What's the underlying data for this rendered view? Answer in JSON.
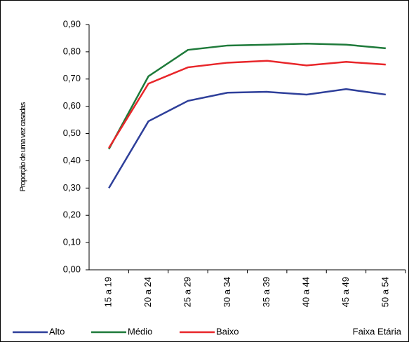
{
  "chart_data": {
    "type": "line",
    "y_label": "Proporção de uma vez casadas",
    "x_label": "Faixa Etária",
    "categories": [
      "15 a 19",
      "20 a 24",
      "25 a 29",
      "30 a 34",
      "35 a 39",
      "40 a 44",
      "45 a 49",
      "50 a 54"
    ],
    "series": [
      {
        "name": "Alto",
        "color": "#2e3f9a",
        "values": [
          0.3,
          0.545,
          0.62,
          0.65,
          0.653,
          0.643,
          0.663,
          0.643
        ]
      },
      {
        "name": "Médio",
        "color": "#1e7a3a",
        "values": [
          0.443,
          0.71,
          0.807,
          0.823,
          0.826,
          0.83,
          0.826,
          0.813
        ]
      },
      {
        "name": "Baixo",
        "color": "#e8262a",
        "values": [
          0.447,
          0.683,
          0.743,
          0.76,
          0.767,
          0.75,
          0.763,
          0.753
        ]
      }
    ],
    "ylim": [
      0,
      0.9
    ],
    "yticks": [
      {
        "value": 0,
        "label": "0,00"
      },
      {
        "value": 0.1,
        "label": "0,10"
      },
      {
        "value": 0.2,
        "label": "0,20"
      },
      {
        "value": 0.3,
        "label": "0,30"
      },
      {
        "value": 0.4,
        "label": "0,40"
      },
      {
        "value": 0.5,
        "label": "0,50"
      },
      {
        "value": 0.6,
        "label": "0,60"
      },
      {
        "value": 0.7,
        "label": "0,70"
      },
      {
        "value": 0.8,
        "label": "0,80"
      },
      {
        "value": 0.9,
        "label": "0,90"
      }
    ],
    "grid": false
  }
}
